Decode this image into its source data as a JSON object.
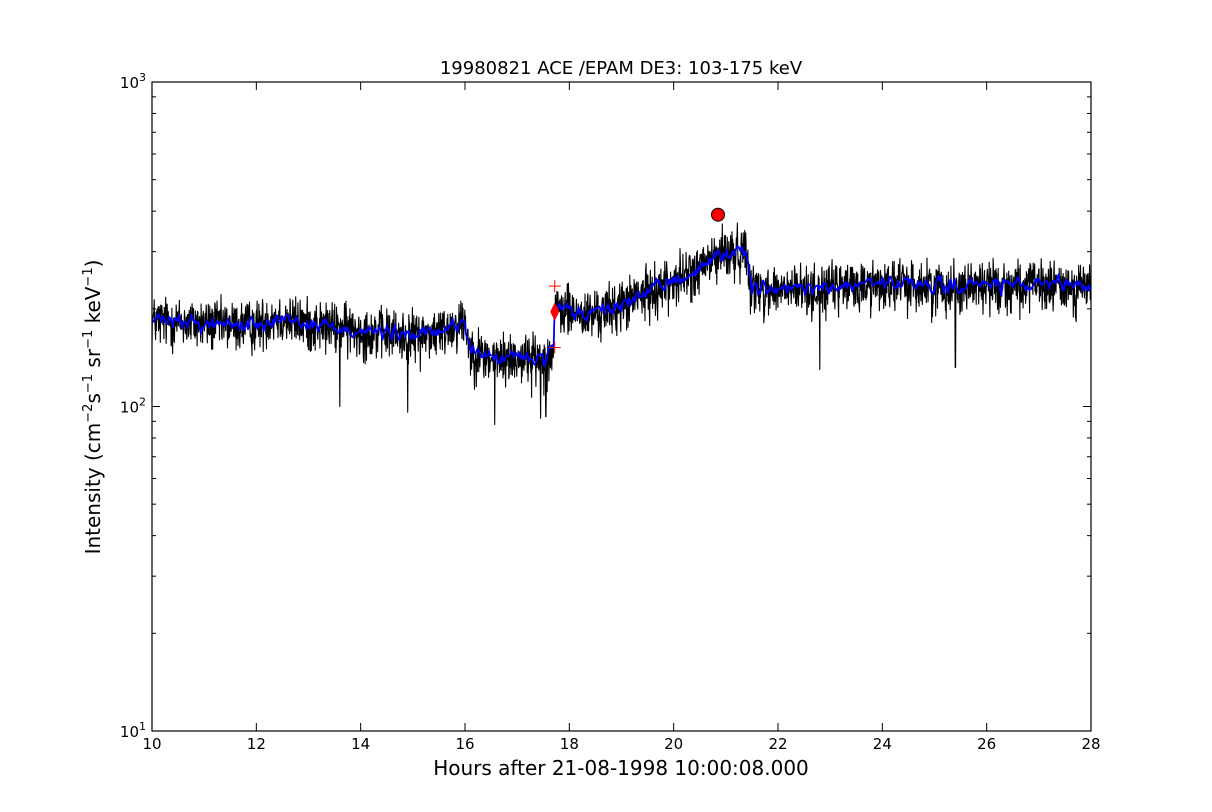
{
  "chart_data": {
    "type": "line",
    "title": "19980821 ACE /EPAM DE3: 103-175 keV",
    "xlabel": "Hours after 21-08-1998 10:00:08.000",
    "ylabel": {
      "text": "Intensity (cm",
      "parts": [
        {
          "t": "Intensity (cm",
          "sup": false
        },
        {
          "t": "−2",
          "sup": true
        },
        {
          "t": "s",
          "sup": false
        },
        {
          "t": "−1",
          "sup": true
        },
        {
          "t": " sr",
          "sup": false
        },
        {
          "t": "−1",
          "sup": true
        },
        {
          "t": " keV",
          "sup": false
        },
        {
          "t": "−1",
          "sup": true
        },
        {
          "t": ")",
          "sup": false
        }
      ]
    },
    "xlim": [
      10,
      28
    ],
    "ylim": [
      10,
      1000
    ],
    "yscale": "log",
    "grid": false,
    "xticks": [
      10,
      12,
      14,
      16,
      18,
      20,
      22,
      24,
      26,
      28
    ],
    "xtick_labels": [
      "10",
      "12",
      "14",
      "16",
      "18",
      "20",
      "22",
      "24",
      "26",
      "28"
    ],
    "yticks": [
      {
        "value": 10,
        "base": "10",
        "exp": "1"
      },
      {
        "value": 100,
        "base": "10",
        "exp": "2"
      },
      {
        "value": 1000,
        "base": "10",
        "exp": "3"
      }
    ],
    "series": [
      {
        "color": "#000000",
        "style": "raw-noisy",
        "trend": [
          [
            10.0,
            185
          ],
          [
            11.0,
            180
          ],
          [
            12.0,
            178
          ],
          [
            12.3,
            190
          ],
          [
            13.0,
            180
          ],
          [
            14.0,
            172
          ],
          [
            15.0,
            165
          ],
          [
            15.5,
            170
          ],
          [
            16.0,
            185
          ],
          [
            16.1,
            150
          ],
          [
            16.5,
            140
          ],
          [
            17.0,
            142
          ],
          [
            17.5,
            140
          ],
          [
            17.7,
            148
          ],
          [
            17.72,
            195
          ],
          [
            17.9,
            200
          ],
          [
            18.3,
            190
          ],
          [
            18.8,
            200
          ],
          [
            19.5,
            225
          ],
          [
            20.0,
            245
          ],
          [
            20.5,
            265
          ],
          [
            20.8,
            290
          ],
          [
            21.4,
            305
          ],
          [
            21.5,
            232
          ],
          [
            22.0,
            228
          ],
          [
            23.0,
            232
          ],
          [
            24.0,
            240
          ],
          [
            25.0,
            235
          ],
          [
            26.0,
            238
          ],
          [
            27.0,
            235
          ],
          [
            28.0,
            235
          ]
        ],
        "noise_fraction": 0.17,
        "extremes": [
          {
            "x": 16.57,
            "y": 88
          },
          {
            "x": 17.45,
            "y": 92
          },
          {
            "x": 17.55,
            "y": 93
          },
          {
            "x": 20.93,
            "y": 365
          },
          {
            "x": 22.8,
            "y": 130
          },
          {
            "x": 25.4,
            "y": 132
          },
          {
            "x": 14.9,
            "y": 96
          },
          {
            "x": 13.6,
            "y": 100
          }
        ]
      },
      {
        "color": "#0000ff",
        "style": "smoothed",
        "trend": [
          [
            10.0,
            185
          ],
          [
            11.0,
            180
          ],
          [
            12.0,
            178
          ],
          [
            12.3,
            190
          ],
          [
            13.0,
            180
          ],
          [
            14.0,
            172
          ],
          [
            15.0,
            165
          ],
          [
            15.5,
            170
          ],
          [
            16.0,
            185
          ],
          [
            16.1,
            150
          ],
          [
            16.5,
            140
          ],
          [
            17.0,
            142
          ],
          [
            17.5,
            140
          ],
          [
            17.7,
            148
          ],
          [
            17.72,
            195
          ],
          [
            17.9,
            200
          ],
          [
            18.3,
            190
          ],
          [
            18.8,
            200
          ],
          [
            19.5,
            225
          ],
          [
            20.0,
            245
          ],
          [
            20.5,
            265
          ],
          [
            20.8,
            290
          ],
          [
            21.4,
            305
          ],
          [
            21.5,
            232
          ],
          [
            22.0,
            228
          ],
          [
            23.0,
            232
          ],
          [
            24.0,
            240
          ],
          [
            25.0,
            235
          ],
          [
            26.0,
            238
          ],
          [
            27.0,
            235
          ],
          [
            28.0,
            235
          ]
        ],
        "noise_fraction": 0.09
      }
    ],
    "markers": [
      {
        "type": "peak",
        "shape": "circle",
        "color": "#ff0000",
        "x": 20.85,
        "y": 390
      },
      {
        "type": "onset",
        "shape": "diamond",
        "color": "#ff0000",
        "x": 17.72,
        "y": 196
      },
      {
        "type": "onset-upper-bound",
        "shape": "plus",
        "color": "#ff0000",
        "x": 17.72,
        "y": 235
      },
      {
        "type": "onset-lower-bound",
        "shape": "plus",
        "color": "#ff0000",
        "x": 17.72,
        "y": 152
      }
    ]
  }
}
